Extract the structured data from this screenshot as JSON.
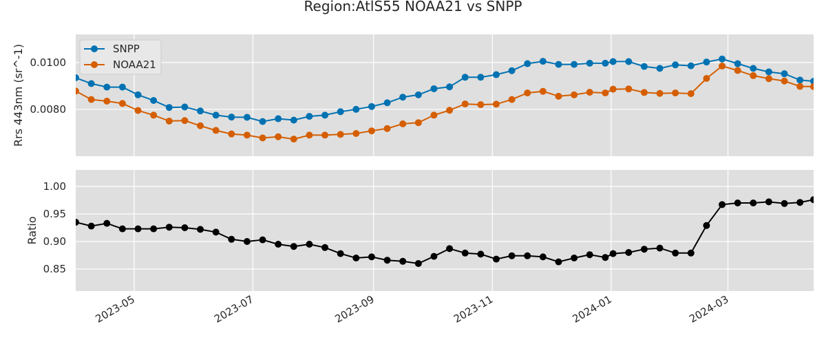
{
  "chart_data": {
    "title": "Region:AtlS55 NOAA21 vs SNPP",
    "x_axis": {
      "range": [
        "2023-04-01",
        "2024-04-14"
      ],
      "ticks": [
        "2023-05",
        "2023-07",
        "2023-09",
        "2023-11",
        "2024-01",
        "2024-03"
      ]
    },
    "panels": [
      {
        "type": "line",
        "ylabel": "Rrs 443nm (sr^-1)",
        "ylim": [
          0.006,
          0.0112
        ],
        "yticks": [
          "0.0080",
          "0.0100"
        ],
        "legend": {
          "placement": "top-left"
        },
        "grid": true,
        "series": [
          {
            "name": "SNPP",
            "color": "#0072b2",
            "x": [
              "2023-04-01",
              "2023-04-09",
              "2023-04-17",
              "2023-04-25",
              "2023-05-03",
              "2023-05-11",
              "2023-05-19",
              "2023-05-27",
              "2023-06-04",
              "2023-06-12",
              "2023-06-20",
              "2023-06-28",
              "2023-07-06",
              "2023-07-14",
              "2023-07-22",
              "2023-07-30",
              "2023-08-07",
              "2023-08-15",
              "2023-08-23",
              "2023-08-31",
              "2023-09-08",
              "2023-09-16",
              "2023-09-24",
              "2023-10-02",
              "2023-10-10",
              "2023-10-18",
              "2023-10-26",
              "2023-11-03",
              "2023-11-11",
              "2023-11-19",
              "2023-11-27",
              "2023-12-05",
              "2023-12-13",
              "2023-12-21",
              "2023-12-29",
              "2024-01-02",
              "2024-01-10",
              "2024-01-18",
              "2024-01-26",
              "2024-02-03",
              "2024-02-11",
              "2024-02-19",
              "2024-02-27",
              "2024-03-06",
              "2024-03-14",
              "2024-03-22",
              "2024-03-30",
              "2024-04-07",
              "2024-04-14"
            ],
            "values": [
              0.00935,
              0.0091,
              0.00895,
              0.00895,
              0.00862,
              0.00838,
              0.00808,
              0.0081,
              0.00793,
              0.00775,
              0.00767,
              0.00766,
              0.00748,
              0.0076,
              0.00754,
              0.0077,
              0.00775,
              0.0079,
              0.008,
              0.00812,
              0.00828,
              0.00852,
              0.00862,
              0.00888,
              0.00896,
              0.00937,
              0.00937,
              0.00948,
              0.00965,
              0.00995,
              0.01005,
              0.00992,
              0.00992,
              0.00997,
              0.00997,
              0.01004,
              0.01004,
              0.00983,
              0.00975,
              0.0099,
              0.00986,
              0.01002,
              0.01015,
              0.00995,
              0.00975,
              0.0096,
              0.00952,
              0.00925,
              0.0092
            ]
          },
          {
            "name": "NOAA21",
            "color": "#d55e00",
            "x": [
              "2023-04-01",
              "2023-04-09",
              "2023-04-17",
              "2023-04-25",
              "2023-05-03",
              "2023-05-11",
              "2023-05-19",
              "2023-05-27",
              "2023-06-04",
              "2023-06-12",
              "2023-06-20",
              "2023-06-28",
              "2023-07-06",
              "2023-07-14",
              "2023-07-22",
              "2023-07-30",
              "2023-08-07",
              "2023-08-15",
              "2023-08-23",
              "2023-08-31",
              "2023-09-08",
              "2023-09-16",
              "2023-09-24",
              "2023-10-02",
              "2023-10-10",
              "2023-10-18",
              "2023-10-26",
              "2023-11-03",
              "2023-11-11",
              "2023-11-19",
              "2023-11-27",
              "2023-12-05",
              "2023-12-13",
              "2023-12-21",
              "2023-12-29",
              "2024-01-02",
              "2024-01-10",
              "2024-01-18",
              "2024-01-26",
              "2024-02-03",
              "2024-02-11",
              "2024-02-19",
              "2024-02-27",
              "2024-03-06",
              "2024-03-14",
              "2024-03-22",
              "2024-03-30",
              "2024-04-07",
              "2024-04-14"
            ],
            "values": [
              0.00878,
              0.00842,
              0.00835,
              0.00825,
              0.00795,
              0.00775,
              0.0075,
              0.00752,
              0.0073,
              0.0071,
              0.00695,
              0.0069,
              0.00678,
              0.00683,
              0.00673,
              0.0069,
              0.0069,
              0.00693,
              0.00697,
              0.00708,
              0.00718,
              0.00738,
              0.00743,
              0.00775,
              0.00796,
              0.00823,
              0.0082,
              0.00822,
              0.00842,
              0.0087,
              0.00877,
              0.00856,
              0.00862,
              0.00873,
              0.0087,
              0.00886,
              0.00887,
              0.00872,
              0.00868,
              0.0087,
              0.00867,
              0.00932,
              0.00985,
              0.00966,
              0.00944,
              0.00931,
              0.00921,
              0.00898,
              0.00897
            ]
          }
        ]
      },
      {
        "type": "line",
        "ylabel": "Ratio",
        "ylim": [
          0.81,
          1.03
        ],
        "yticks": [
          "0.85",
          "0.90",
          "0.95",
          "1.00"
        ],
        "grid": true,
        "series": [
          {
            "color": "#000000",
            "x": [
              "2023-04-01",
              "2023-04-09",
              "2023-04-17",
              "2023-04-25",
              "2023-05-03",
              "2023-05-11",
              "2023-05-19",
              "2023-05-27",
              "2023-06-04",
              "2023-06-12",
              "2023-06-20",
              "2023-06-28",
              "2023-07-06",
              "2023-07-14",
              "2023-07-22",
              "2023-07-30",
              "2023-08-07",
              "2023-08-15",
              "2023-08-23",
              "2023-08-31",
              "2023-09-08",
              "2023-09-16",
              "2023-09-24",
              "2023-10-02",
              "2023-10-10",
              "2023-10-18",
              "2023-10-26",
              "2023-11-03",
              "2023-11-11",
              "2023-11-19",
              "2023-11-27",
              "2023-12-05",
              "2023-12-13",
              "2023-12-21",
              "2023-12-29",
              "2024-01-02",
              "2024-01-10",
              "2024-01-18",
              "2024-01-26",
              "2024-02-03",
              "2024-02-11",
              "2024-02-19",
              "2024-02-27",
              "2024-03-06",
              "2024-03-14",
              "2024-03-22",
              "2024-03-30",
              "2024-04-07",
              "2024-04-14"
            ],
            "values": [
              0.935,
              0.928,
              0.933,
              0.923,
              0.923,
              0.923,
              0.926,
              0.925,
              0.922,
              0.917,
              0.904,
              0.9,
              0.903,
              0.895,
              0.891,
              0.895,
              0.889,
              0.878,
              0.87,
              0.872,
              0.866,
              0.864,
              0.86,
              0.873,
              0.887,
              0.879,
              0.877,
              0.868,
              0.874,
              0.874,
              0.872,
              0.863,
              0.87,
              0.876,
              0.871,
              0.878,
              0.88,
              0.886,
              0.888,
              0.879,
              0.879,
              0.929,
              0.967,
              0.97,
              0.97,
              0.972,
              0.969,
              0.971,
              0.976
            ]
          }
        ]
      }
    ]
  }
}
